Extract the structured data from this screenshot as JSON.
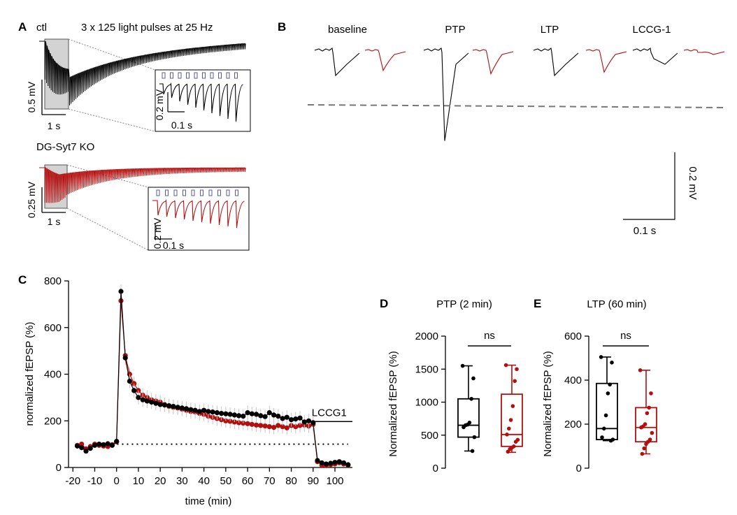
{
  "panel_letters": {
    "a": "A",
    "b": "B",
    "c": "C",
    "d": "D",
    "e": "E"
  },
  "colors": {
    "ctl": "#000000",
    "ko": "#b30f0f",
    "shade": "#d0d0d0",
    "dash": "#777777",
    "pulse": "#5a5aa0"
  },
  "panel_a": {
    "ctl_label": "ctl",
    "stim_label": "3 x 125 light pulses at 25 Hz",
    "ko_label": "DG-Syt7 KO",
    "ctl_scale_v": "0.5 mV",
    "ctl_scale_t": "1 s",
    "ctl_inset_v": "0.2 mV",
    "ctl_inset_t": "0.1 s",
    "ko_scale_v": "0.25 mV",
    "ko_scale_t": "1 s",
    "ko_inset_v": "0.2 mV",
    "ko_inset_t": "0.1 s",
    "inset_pulse_count": 10
  },
  "panel_b": {
    "conditions": [
      "baseline",
      "PTP",
      "LTP",
      "LCCG-1"
    ],
    "scale_v": "0.2 mV",
    "scale_t": "0.1 s",
    "ctl_peaks_mV": [
      -0.075,
      -0.27,
      -0.075,
      -0.025
    ],
    "ko_peaks_mV": [
      -0.06,
      -0.07,
      -0.065,
      -0.006
    ]
  },
  "chart_data": [
    {
      "panel": "C",
      "type": "line",
      "title": "",
      "xlabel": "time (min)",
      "ylabel": "normalized fEPSP (%)",
      "xlim": [
        -22,
        108
      ],
      "ylim": [
        0,
        800
      ],
      "xticks": [
        -20,
        -10,
        0,
        10,
        20,
        30,
        40,
        50,
        60,
        70,
        80,
        90,
        100
      ],
      "xtick_labels": [
        "-20",
        "-10",
        "0",
        "10",
        "20",
        "30",
        "40",
        "50",
        "60",
        "70",
        "80",
        "90",
        "100"
      ],
      "yticks": [
        0,
        200,
        400,
        600,
        800
      ],
      "ytick_labels": [
        "0",
        "200",
        "400",
        "600",
        "800"
      ],
      "reference_line": 100,
      "annotation": "LCCG1",
      "annotation_range": [
        90,
        108
      ],
      "annotation_level": 197,
      "series": [
        {
          "name": "ctl",
          "color": "#000000",
          "x": [
            -18,
            -16,
            -14,
            -12,
            -10,
            -8,
            -6,
            -4,
            -2,
            0,
            2,
            4,
            6,
            8,
            10,
            12,
            14,
            16,
            18,
            20,
            22,
            24,
            26,
            28,
            30,
            32,
            34,
            36,
            38,
            40,
            42,
            44,
            46,
            48,
            50,
            52,
            54,
            56,
            58,
            60,
            62,
            64,
            66,
            68,
            70,
            72,
            74,
            76,
            78,
            80,
            82,
            84,
            86,
            88,
            90,
            92,
            94,
            96,
            98,
            100,
            102,
            104,
            106
          ],
          "y": [
            92,
            85,
            70,
            82,
            95,
            100,
            98,
            102,
            95,
            112,
            755,
            470,
            370,
            330,
            300,
            290,
            285,
            280,
            275,
            270,
            268,
            265,
            262,
            258,
            255,
            252,
            248,
            245,
            240,
            245,
            240,
            238,
            235,
            232,
            230,
            228,
            225,
            222,
            220,
            235,
            230,
            228,
            222,
            218,
            235,
            225,
            220,
            210,
            215,
            205,
            208,
            212,
            195,
            200,
            192,
            30,
            20,
            15,
            18,
            22,
            25,
            20,
            12
          ]
        },
        {
          "name": "DG-Syt7 KO",
          "color": "#b30f0f",
          "x": [
            -18,
            -16,
            -14,
            -12,
            -10,
            -8,
            -6,
            -4,
            -2,
            0,
            2,
            4,
            6,
            8,
            10,
            12,
            14,
            16,
            18,
            20,
            22,
            24,
            26,
            28,
            30,
            32,
            34,
            36,
            38,
            40,
            42,
            44,
            46,
            48,
            50,
            52,
            54,
            56,
            58,
            60,
            62,
            64,
            66,
            68,
            70,
            72,
            74,
            76,
            78,
            80,
            82,
            84,
            86,
            88,
            90,
            92,
            94,
            96,
            98,
            100,
            102,
            104,
            106
          ],
          "y": [
            95,
            100,
            80,
            90,
            100,
            95,
            92,
            90,
            98,
            110,
            715,
            480,
            400,
            360,
            330,
            310,
            300,
            290,
            285,
            280,
            270,
            262,
            258,
            255,
            250,
            245,
            240,
            238,
            232,
            228,
            220,
            215,
            210,
            205,
            200,
            198,
            195,
            192,
            190,
            188,
            185,
            182,
            180,
            178,
            175,
            172,
            180,
            175,
            170,
            180,
            175,
            180,
            182,
            178,
            185,
            25,
            10,
            8,
            12,
            15,
            20,
            15,
            10
          ]
        }
      ]
    },
    {
      "panel": "D",
      "type": "box",
      "title": "PTP (2 min)",
      "xlabel": "",
      "ylabel": "Normalized fEPSP (%)",
      "ylim": [
        0,
        2000
      ],
      "yticks": [
        0,
        500,
        1000,
        1500,
        2000
      ],
      "ytick_labels": [
        "0",
        "500",
        "1000",
        "1500",
        "2000"
      ],
      "significance": "ns",
      "groups": [
        {
          "name": "ctl",
          "color": "#000000",
          "min": 260,
          "q1": 470,
          "median": 650,
          "q3": 1050,
          "max": 1550,
          "points": [
            1550,
            1360,
            1050,
            690,
            660,
            650,
            620,
            470,
            260
          ]
        },
        {
          "name": "DG-Syt7 KO",
          "color": "#b30f0f",
          "min": 240,
          "q1": 330,
          "median": 510,
          "q3": 1120,
          "max": 1560,
          "points": [
            1560,
            1500,
            1320,
            940,
            730,
            600,
            510,
            430,
            400,
            330,
            310,
            290,
            250
          ]
        }
      ]
    },
    {
      "panel": "E",
      "type": "box",
      "title": "LTP (60 min)",
      "xlabel": "",
      "ylabel": "Normalized fEPSP (%)",
      "ylim": [
        0,
        600
      ],
      "yticks": [
        0,
        200,
        400,
        600
      ],
      "ytick_labels": [
        "0",
        "200",
        "400",
        "600"
      ],
      "significance": "ns",
      "groups": [
        {
          "name": "ctl",
          "color": "#000000",
          "min": 125,
          "q1": 130,
          "median": 180,
          "q3": 385,
          "max": 505,
          "points": [
            505,
            480,
            380,
            340,
            240,
            180,
            140,
            130,
            125
          ]
        },
        {
          "name": "DG-Syt7 KO",
          "color": "#b30f0f",
          "min": 65,
          "q1": 120,
          "median": 185,
          "q3": 275,
          "max": 445,
          "points": [
            445,
            340,
            275,
            250,
            200,
            190,
            185,
            160,
            130,
            120,
            110,
            90,
            65
          ]
        }
      ]
    }
  ]
}
